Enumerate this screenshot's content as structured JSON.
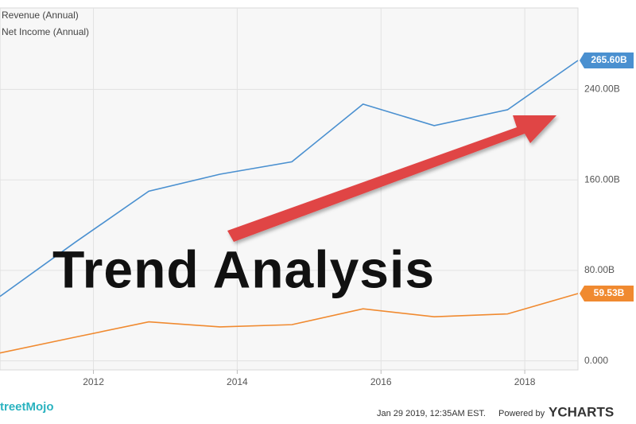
{
  "chart_data": {
    "type": "line",
    "annotation": "Trend Analysis",
    "x": [
      2010.7,
      2011.75,
      2012.77,
      2013.76,
      2014.76,
      2015.75,
      2016.74,
      2017.76,
      2018.74
    ],
    "series": [
      {
        "name": "Revenue (Annual)",
        "color": "#4a90d0",
        "values": [
          57,
          105,
          150,
          165,
          176,
          227,
          208,
          222,
          265.6
        ],
        "value_labels": [
          null,
          null,
          null,
          null,
          null,
          null,
          null,
          null,
          "265.60B"
        ]
      },
      {
        "name": "Net Income (Annual)",
        "color": "#f08a30",
        "values": [
          7,
          21,
          34.5,
          30,
          32,
          46,
          39,
          41.5,
          59.53
        ],
        "value_labels": [
          null,
          null,
          null,
          null,
          null,
          null,
          null,
          null,
          "59.53B"
        ]
      }
    ],
    "xlim": [
      2010.7,
      2018.74
    ],
    "xticks": [
      2012,
      2014,
      2016,
      2018
    ],
    "ylim": [
      -8,
      312
    ],
    "yticks": [
      {
        "value": 0,
        "label": "0.000"
      },
      {
        "value": 80,
        "label": "80.00B"
      },
      {
        "value": 160,
        "label": "160.00B"
      },
      {
        "value": 240,
        "label": "240.00B"
      }
    ],
    "grid": true,
    "watermark": "treetMojo",
    "timestamp": "Jan 29 2019, 12:35AM EST.",
    "credit": "Powered by",
    "brand": "YCHARTS"
  }
}
